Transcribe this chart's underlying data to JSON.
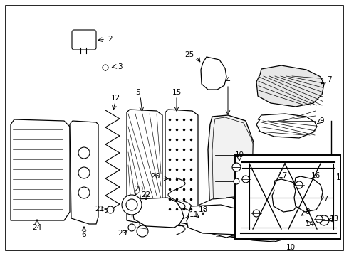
{
  "bg_color": "#ffffff",
  "border_color": "#000000",
  "fig_width": 4.9,
  "fig_height": 3.6,
  "dpi": 100,
  "line_color": "#000000"
}
